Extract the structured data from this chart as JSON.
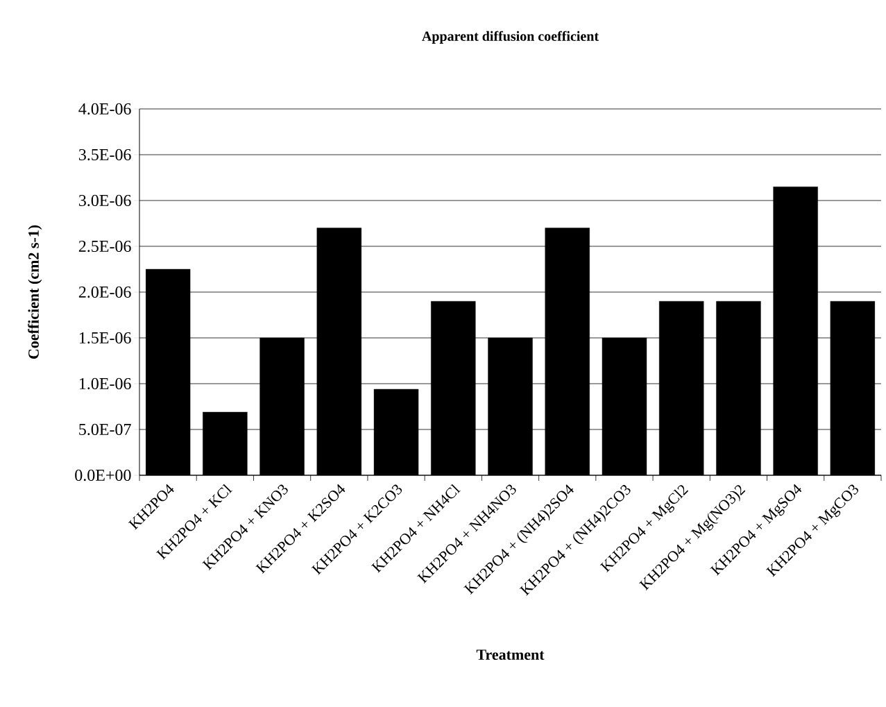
{
  "chart_data": {
    "type": "bar",
    "title": "Apparent diffusion coefficient",
    "xlabel": "Treatment",
    "ylabel": "Coefficient (cm2 s-1)",
    "categories": [
      "KH2PO4",
      "KH2PO4 + KCl",
      "KH2PO4 + KNO3",
      "KH2PO4 + K2SO4",
      "KH2PO4 + K2CO3",
      "KH2PO4 + NH4Cl",
      "KH2PO4 + NH4NO3",
      "KH2PO4 + (NH4)2SO4",
      "KH2PO4 + (NH4)2CO3",
      "KH2PO4 + MgCl2",
      "KH2PO4 + Mg(NO3)2",
      "KH2PO4 + MgSO4",
      "KH2PO4 + MgCO3"
    ],
    "values": [
      2.25e-06,
      6.9e-07,
      1.5e-06,
      2.7e-06,
      9.4e-07,
      1.9e-06,
      1.5e-06,
      2.7e-06,
      1.5e-06,
      1.9e-06,
      1.9e-06,
      3.15e-06,
      1.9e-06
    ],
    "color": "#000000",
    "ylim": [
      0,
      4e-06
    ],
    "yticks": [
      {
        "value": 0,
        "label": "0.0E+00"
      },
      {
        "value": 5e-07,
        "label": "5.0E-07"
      },
      {
        "value": 1e-06,
        "label": "1.0E-06"
      },
      {
        "value": 1.5e-06,
        "label": "1.5E-06"
      },
      {
        "value": 2e-06,
        "label": "2.0E-06"
      },
      {
        "value": 2.5e-06,
        "label": "2.5E-06"
      },
      {
        "value": 3e-06,
        "label": "3.0E-06"
      },
      {
        "value": 3.5e-06,
        "label": "3.5E-06"
      },
      {
        "value": 4e-06,
        "label": "4.0E-06"
      }
    ],
    "grid": "y"
  }
}
